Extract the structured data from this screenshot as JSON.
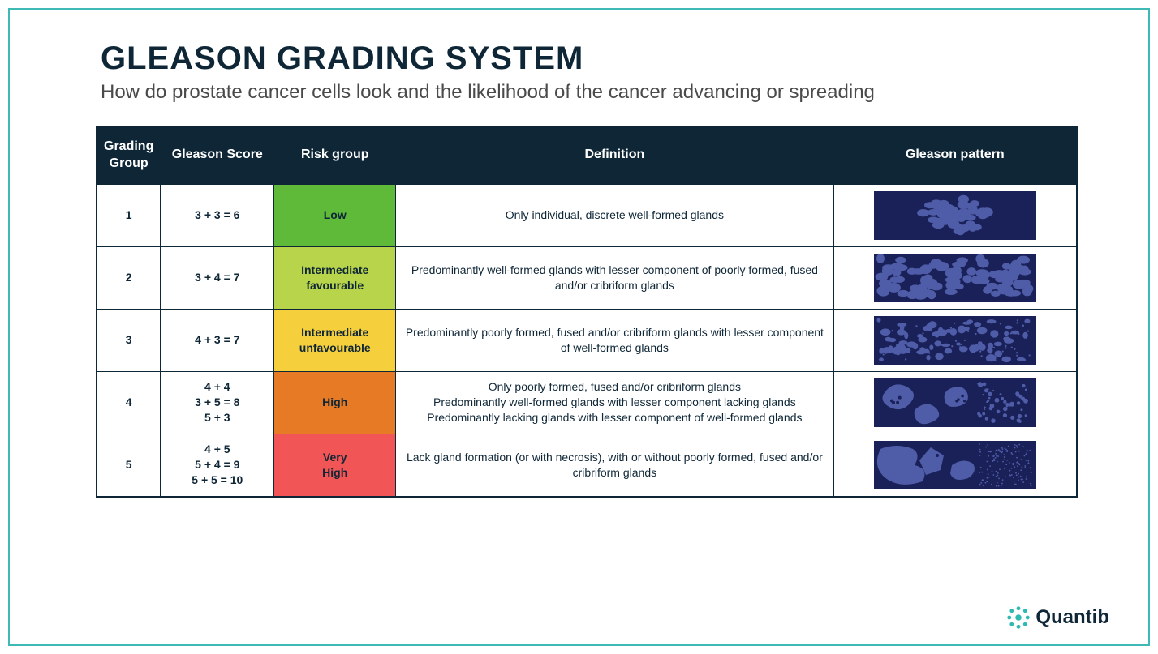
{
  "colors": {
    "frame_border": "#3fb9b3",
    "header_bg": "#0e2636",
    "header_fg": "#ffffff",
    "cell_border": "#0e2636",
    "text_dark": "#0e2636",
    "text_body": "#222222",
    "pattern_bg": "#1a2158",
    "pattern_shape": "#4f5ca8",
    "logo_accent": "#2fb9b3"
  },
  "header": {
    "title": "GLEASON GRADING SYSTEM",
    "subtitle": "How do prostate cancer cells look and the likelihood of the cancer advancing or spreading"
  },
  "table": {
    "columns": {
      "group": "Grading Group",
      "score": "Gleason Score",
      "risk": "Risk group",
      "definition": "Definition",
      "pattern": "Gleason pattern"
    },
    "rows": [
      {
        "group": "1",
        "score": "3 + 3 = 6",
        "risk_label": "Low",
        "risk_bg": "#5fba3a",
        "definition": "Only individual, discrete well-formed glands",
        "pattern_type": 1
      },
      {
        "group": "2",
        "score": "3 + 4 = 7",
        "risk_label": "Intermediate favourable",
        "risk_bg": "#b8d44a",
        "definition": "Predominantly well-formed glands with lesser component of poorly formed, fused and/or cribriform glands",
        "pattern_type": 2
      },
      {
        "group": "3",
        "score": "4 + 3 = 7",
        "risk_label": "Intermediate unfavourable",
        "risk_bg": "#f5cf3c",
        "definition": "Predominantly poorly formed, fused and/or cribriform glands with lesser component of well-formed glands",
        "pattern_type": 3
      },
      {
        "group": "4",
        "score": "4 + 4\n3 + 5 = 8\n5 + 3",
        "risk_label": "High",
        "risk_bg": "#e77a24",
        "definition": "Only poorly formed, fused and/or cribriform glands\nPredominantly well-formed glands with lesser component lacking glands\nPredominantly lacking glands with lesser component of well-formed glands",
        "pattern_type": 4
      },
      {
        "group": "5",
        "score": "4 + 5\n5 + 4 = 9\n5 + 5 = 10",
        "risk_label": "Very High",
        "risk_bg": "#f15555",
        "definition": "Lack gland formation (or with necrosis), with or without poorly formed, fused and/or cribriform glands",
        "pattern_type": 5
      }
    ]
  },
  "logo": {
    "text": "Quantib"
  }
}
